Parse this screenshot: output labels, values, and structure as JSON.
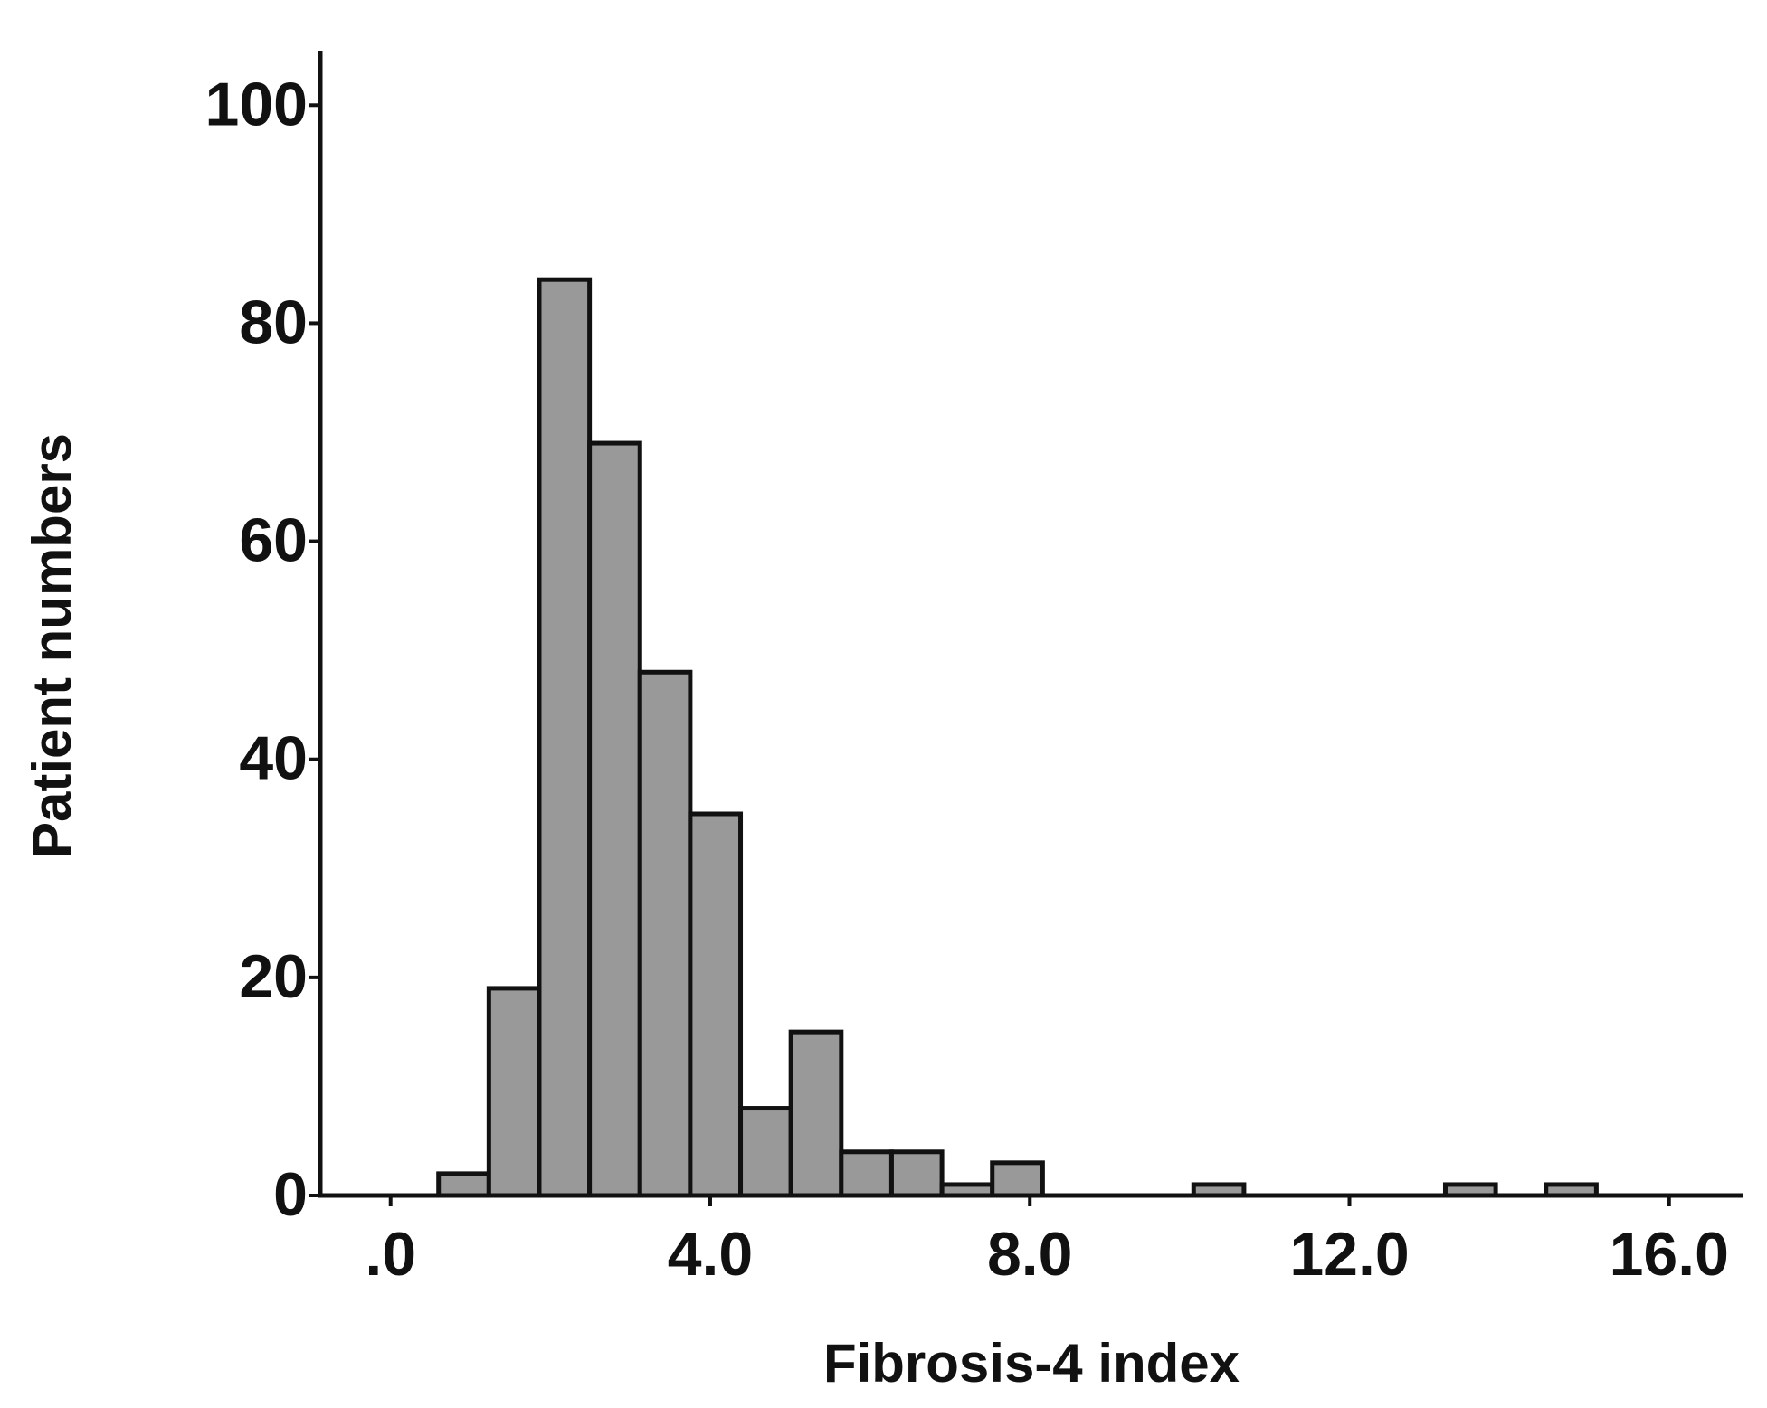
{
  "chart_data": {
    "type": "histogram",
    "x_label": "Fibrosis-4 index",
    "y_label": "Patient numbers",
    "bins": [
      0.6,
      1.23,
      1.86,
      2.49,
      3.12,
      3.75,
      4.38,
      5.01,
      5.64,
      6.27,
      6.9,
      7.53,
      8.16,
      8.79,
      9.42,
      10.05,
      10.68,
      11.31,
      11.94,
      12.57,
      13.2,
      13.83,
      14.46,
      15.09
    ],
    "values": [
      2,
      19,
      84,
      69,
      48,
      35,
      8,
      15,
      4,
      4,
      1,
      3,
      0,
      0,
      0,
      1,
      0,
      0,
      0,
      0,
      1,
      0,
      1
    ],
    "color": "#999999",
    "xlim": [
      -0.88,
      16.92
    ],
    "xticks": [
      {
        "value": 0,
        "label": ".0"
      },
      {
        "value": 4,
        "label": "4.0"
      },
      {
        "value": 8,
        "label": "8.0"
      },
      {
        "value": 12,
        "label": "12.0"
      },
      {
        "value": 16,
        "label": "16.0"
      }
    ],
    "ylim": [
      0,
      105
    ],
    "yticks": [
      0,
      20,
      40,
      60,
      80,
      100
    ],
    "grid": false
  }
}
